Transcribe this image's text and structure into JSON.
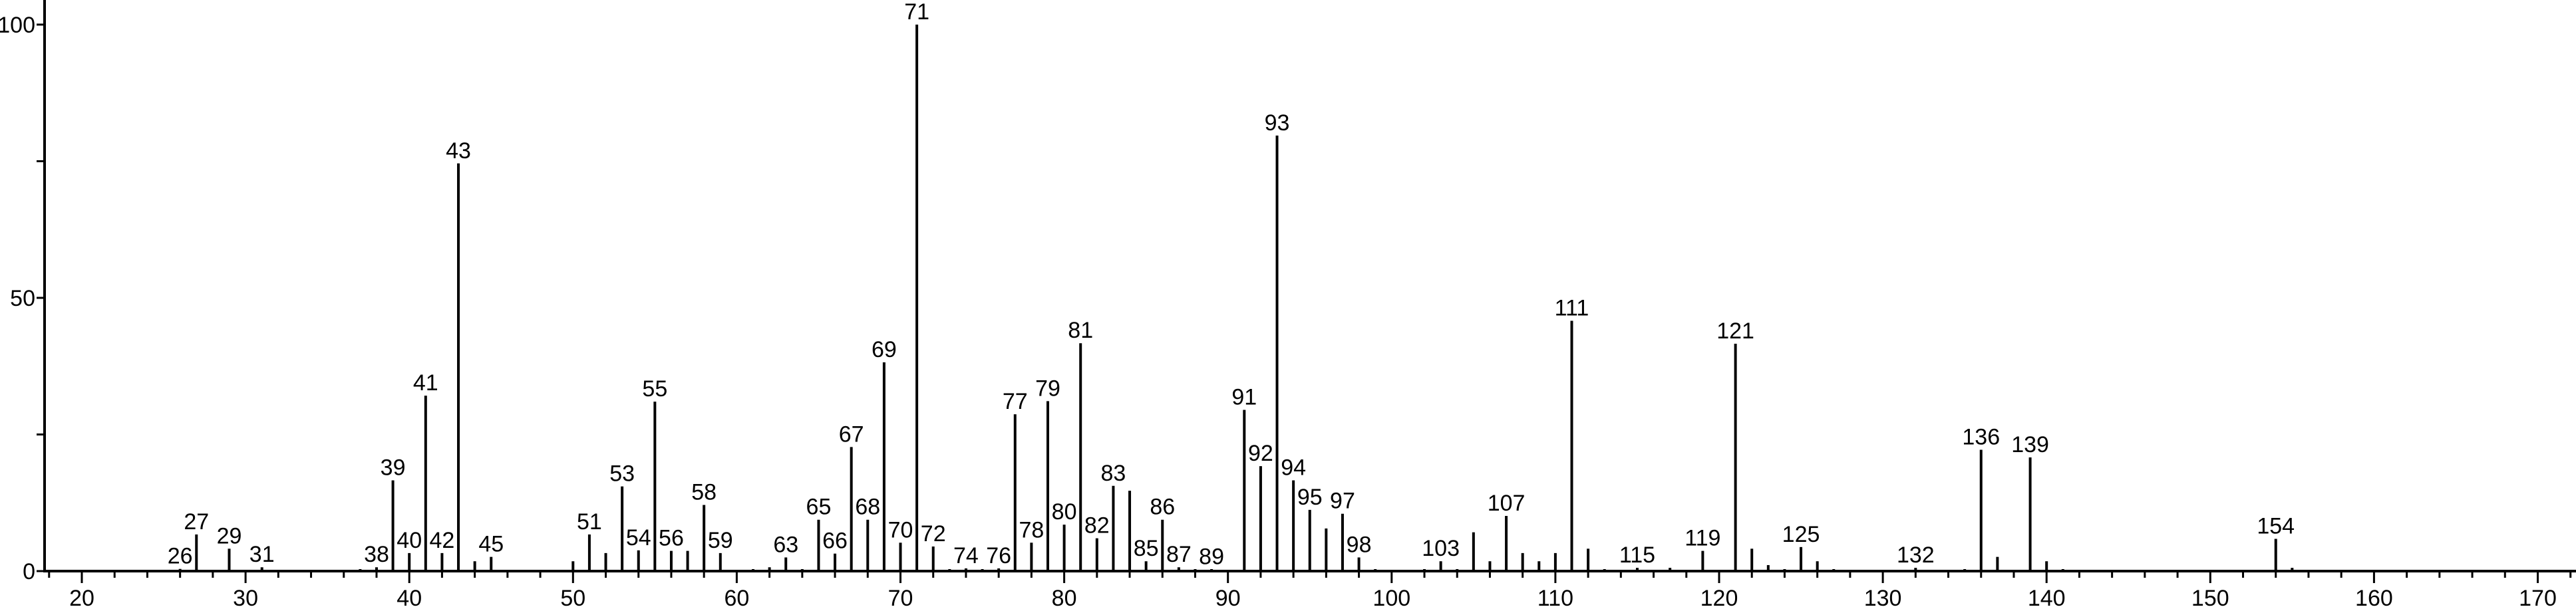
{
  "chart_data": {
    "type": "bar",
    "title": "",
    "xlabel": "",
    "ylabel": "",
    "xlim": [
      18,
      172
    ],
    "ylim": [
      0,
      100
    ],
    "x_ticks": [
      20,
      30,
      40,
      50,
      60,
      70,
      80,
      90,
      100,
      110,
      120,
      130,
      140,
      150,
      160,
      170
    ],
    "y_ticks": [
      0,
      50,
      100
    ],
    "grid": false,
    "bar_color": "#000000",
    "peaks": [
      {
        "mz": 26,
        "intensity": 0.4,
        "label": "26"
      },
      {
        "mz": 27,
        "intensity": 6.7,
        "label": "27"
      },
      {
        "mz": 29,
        "intensity": 4.1,
        "label": "29"
      },
      {
        "mz": 31,
        "intensity": 0.7,
        "label": "31"
      },
      {
        "mz": 37,
        "intensity": 0.3
      },
      {
        "mz": 38,
        "intensity": 0.7,
        "label": "38"
      },
      {
        "mz": 39,
        "intensity": 16.6,
        "label": "39"
      },
      {
        "mz": 40,
        "intensity": 3.3,
        "label": "40"
      },
      {
        "mz": 41,
        "intensity": 32.1,
        "label": "41"
      },
      {
        "mz": 42,
        "intensity": 3.3,
        "label": "42"
      },
      {
        "mz": 43,
        "intensity": 74.6,
        "label": "43"
      },
      {
        "mz": 44,
        "intensity": 1.8
      },
      {
        "mz": 45,
        "intensity": 2.6,
        "label": "45"
      },
      {
        "mz": 50,
        "intensity": 1.8
      },
      {
        "mz": 51,
        "intensity": 6.7,
        "label": "51"
      },
      {
        "mz": 52,
        "intensity": 3.3
      },
      {
        "mz": 53,
        "intensity": 15.5,
        "label": "53"
      },
      {
        "mz": 54,
        "intensity": 3.8,
        "label": "54"
      },
      {
        "mz": 55,
        "intensity": 31.0,
        "label": "55"
      },
      {
        "mz": 56,
        "intensity": 3.7,
        "label": "56"
      },
      {
        "mz": 57,
        "intensity": 3.7
      },
      {
        "mz": 58,
        "intensity": 12.1,
        "label": "58"
      },
      {
        "mz": 59,
        "intensity": 3.3,
        "label": "59"
      },
      {
        "mz": 61,
        "intensity": 0.3
      },
      {
        "mz": 62,
        "intensity": 0.7
      },
      {
        "mz": 63,
        "intensity": 2.5,
        "label": "63"
      },
      {
        "mz": 64,
        "intensity": 0.3
      },
      {
        "mz": 65,
        "intensity": 9.4,
        "label": "65"
      },
      {
        "mz": 66,
        "intensity": 3.2,
        "label": "66"
      },
      {
        "mz": 67,
        "intensity": 22.7,
        "label": "67"
      },
      {
        "mz": 68,
        "intensity": 9.4,
        "label": "68"
      },
      {
        "mz": 69,
        "intensity": 38.2,
        "label": "69"
      },
      {
        "mz": 70,
        "intensity": 5.2,
        "label": "70"
      },
      {
        "mz": 71,
        "intensity": 100,
        "label": "71"
      },
      {
        "mz": 72,
        "intensity": 4.5,
        "label": "72"
      },
      {
        "mz": 73,
        "intensity": 0.3
      },
      {
        "mz": 74,
        "intensity": 0.5,
        "label": "74"
      },
      {
        "mz": 75,
        "intensity": 0.3
      },
      {
        "mz": 76,
        "intensity": 0.5,
        "label": "76"
      },
      {
        "mz": 77,
        "intensity": 28.7,
        "label": "77"
      },
      {
        "mz": 78,
        "intensity": 5.2,
        "label": "78"
      },
      {
        "mz": 79,
        "intensity": 31.1,
        "label": "79"
      },
      {
        "mz": 80,
        "intensity": 8.5,
        "label": "80"
      },
      {
        "mz": 81,
        "intensity": 41.7,
        "label": "81"
      },
      {
        "mz": 82,
        "intensity": 6.0,
        "label": "82"
      },
      {
        "mz": 83,
        "intensity": 15.6,
        "label": "83"
      },
      {
        "mz": 84,
        "intensity": 14.7
      },
      {
        "mz": 85,
        "intensity": 1.8,
        "label": "85"
      },
      {
        "mz": 86,
        "intensity": 9.4,
        "label": "86"
      },
      {
        "mz": 87,
        "intensity": 0.7,
        "label": "87"
      },
      {
        "mz": 88,
        "intensity": 0.3
      },
      {
        "mz": 89,
        "intensity": 0.3,
        "label": "89"
      },
      {
        "mz": 91,
        "intensity": 29.5,
        "label": "91"
      },
      {
        "mz": 92,
        "intensity": 19.2,
        "label": "92"
      },
      {
        "mz": 93,
        "intensity": 79.7,
        "label": "93"
      },
      {
        "mz": 94,
        "intensity": 16.6,
        "label": "94"
      },
      {
        "mz": 95,
        "intensity": 11.2,
        "label": "95"
      },
      {
        "mz": 96,
        "intensity": 7.8
      },
      {
        "mz": 97,
        "intensity": 10.5,
        "label": "97"
      },
      {
        "mz": 98,
        "intensity": 2.5,
        "label": "98"
      },
      {
        "mz": 99,
        "intensity": 0.3
      },
      {
        "mz": 102,
        "intensity": 0.3
      },
      {
        "mz": 103,
        "intensity": 1.8,
        "label": "103"
      },
      {
        "mz": 104,
        "intensity": 0.3
      },
      {
        "mz": 105,
        "intensity": 7.1
      },
      {
        "mz": 106,
        "intensity": 1.8
      },
      {
        "mz": 107,
        "intensity": 10.1,
        "label": "107"
      },
      {
        "mz": 108,
        "intensity": 3.3
      },
      {
        "mz": 109,
        "intensity": 1.8
      },
      {
        "mz": 110,
        "intensity": 3.3
      },
      {
        "mz": 111,
        "intensity": 45.8,
        "label": "111"
      },
      {
        "mz": 112,
        "intensity": 4.1
      },
      {
        "mz": 113,
        "intensity": 0.3
      },
      {
        "mz": 115,
        "intensity": 0.6,
        "label": "115"
      },
      {
        "mz": 117,
        "intensity": 0.6
      },
      {
        "mz": 119,
        "intensity": 3.7,
        "label": "119"
      },
      {
        "mz": 121,
        "intensity": 41.6,
        "label": "121"
      },
      {
        "mz": 122,
        "intensity": 4.1
      },
      {
        "mz": 123,
        "intensity": 1.1
      },
      {
        "mz": 124,
        "intensity": 0.3
      },
      {
        "mz": 125,
        "intensity": 4.4,
        "label": "125"
      },
      {
        "mz": 126,
        "intensity": 1.8
      },
      {
        "mz": 127,
        "intensity": 0.3
      },
      {
        "mz": 132,
        "intensity": 0.6,
        "label": "132"
      },
      {
        "mz": 135,
        "intensity": 0.3
      },
      {
        "mz": 136,
        "intensity": 22.2,
        "label": "136"
      },
      {
        "mz": 137,
        "intensity": 2.6
      },
      {
        "mz": 139,
        "intensity": 20.8,
        "label": "139"
      },
      {
        "mz": 140,
        "intensity": 1.8
      },
      {
        "mz": 141,
        "intensity": 0.3
      },
      {
        "mz": 154,
        "intensity": 5.9,
        "label": "154"
      },
      {
        "mz": 155,
        "intensity": 0.6
      }
    ]
  }
}
